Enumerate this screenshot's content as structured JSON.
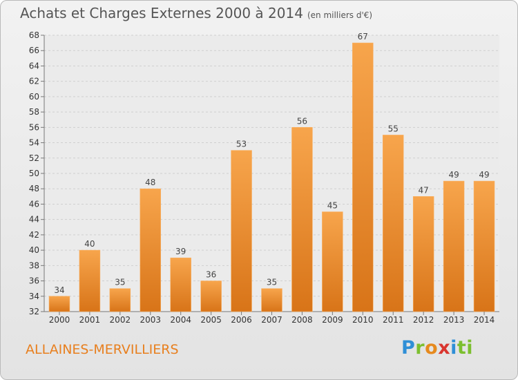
{
  "header": {
    "title": "Achats et Charges Externes 2000 à 2014",
    "subtitle": "(en milliers d'€)"
  },
  "footer": {
    "commune": "ALLAINES-MERVILLIERS",
    "logo_letters": [
      "P",
      "r",
      "o",
      "x",
      "i",
      "ti"
    ]
  },
  "colors": {
    "bar_light": "#f7a54c",
    "bar_dark": "#d87418",
    "grid": "#cfcfcf",
    "accent": "#e87f1e"
  },
  "chart_data": {
    "type": "bar",
    "title": "Achats et Charges Externes 2000 à 2014",
    "subtitle": "(en milliers d'€)",
    "xlabel": "",
    "ylabel": "",
    "categories": [
      "2000",
      "2001",
      "2002",
      "2003",
      "2004",
      "2005",
      "2006",
      "2007",
      "2008",
      "2009",
      "2010",
      "2011",
      "2012",
      "2013",
      "2014"
    ],
    "values": [
      34,
      40,
      35,
      48,
      39,
      36,
      53,
      35,
      56,
      45,
      67,
      55,
      47,
      49,
      49
    ],
    "ylim": [
      32,
      68
    ],
    "yticks": [
      32,
      34,
      36,
      38,
      40,
      42,
      44,
      46,
      48,
      50,
      52,
      54,
      56,
      58,
      60,
      62,
      64,
      66,
      68
    ],
    "grid": true,
    "data_labels": true
  }
}
